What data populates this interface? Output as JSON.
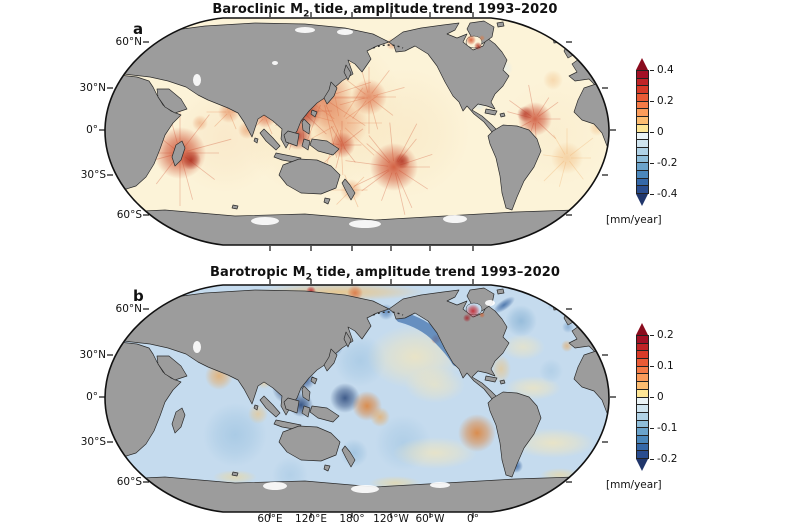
{
  "figure": {
    "panels": [
      {
        "letter": "a",
        "title_prefix": "Baroclinic M",
        "title_sub": "2",
        "title_suffix": " tide, amplitude trend 1993–2020",
        "lat_labels": [
          "60°N",
          "30°N",
          "0°",
          "30°S",
          "60°S"
        ],
        "colorbar": {
          "tick_labels": [
            "0.4",
            "0.2",
            "0",
            "-0.2",
            "-0.4"
          ],
          "unit": "[mm/year]"
        }
      },
      {
        "letter": "b",
        "title_prefix": "Barotropic M",
        "title_sub": "2",
        "title_suffix": " tide, amplitude trend 1993–2020",
        "lat_labels": [
          "60°N",
          "30°N",
          "0°",
          "30°S",
          "60°S"
        ],
        "colorbar": {
          "tick_labels": [
            "0.2",
            "0.1",
            "0",
            "-0.1",
            "-0.2"
          ],
          "unit": "[mm/year]"
        }
      }
    ],
    "lon_labels": [
      "60°E",
      "120°E",
      "180°",
      "120°W",
      "60°W",
      "0°"
    ],
    "palette": {
      "land": "#9c9c9c",
      "coastline": "#2b2b2b",
      "map_outline": "#111111",
      "ocean_a": "#fcf3d8",
      "ocean_b": "#c5dbee",
      "colorbar_colors": [
        "#a31126",
        "#c02427",
        "#d83a28",
        "#ea5b36",
        "#f57b47",
        "#fb9c5b",
        "#fdbd71",
        "#fee696",
        "#eaf3f6",
        "#cfe4ef",
        "#b0d2e6",
        "#8fbeda",
        "#6ba3cb",
        "#4b87bb",
        "#3568a8",
        "#2a4d8f"
      ],
      "colorbar_arrow_top": "#8a0c1e",
      "colorbar_arrow_bottom": "#20366b"
    },
    "chart_data": [
      {
        "type": "heatmap",
        "title": "Baroclinic M2 tide, amplitude trend 1993–2020",
        "projection": "Robinson world map, Pacific-centered",
        "colorbar": {
          "min": -0.4,
          "max": 0.4,
          "step": 0.05,
          "labeled_ticks": [
            0.4,
            0.2,
            0,
            -0.2,
            -0.4
          ],
          "unit": "mm/year"
        },
        "lat_ticks": [
          "60°N",
          "30°N",
          "0°",
          "30°S",
          "60°S"
        ],
        "lon_ticks": [
          "60°E",
          "120°E",
          "180°",
          "120°W",
          "60°W",
          "0°"
        ],
        "notable_features": [
          "strong positive (red) radiating beams near Madagascar/Mascarene ridge",
          "very strong positive signal South China Sea / Philippines / Indonesian seas",
          "radiating positive beams at Hawaii and French Polynesia",
          "positive beams near Caribbean/Amazon shelf",
          "mostly pale positive (cream/orange) ocean background",
          "gray continents"
        ]
      },
      {
        "type": "heatmap",
        "title": "Barotropic M2 tide, amplitude trend 1993–2020",
        "projection": "Robinson world map, Pacific-centered",
        "colorbar": {
          "min": -0.2,
          "max": 0.2,
          "step": 0.025,
          "labeled_ticks": [
            0.2,
            0.1,
            0,
            -0.1,
            -0.2
          ],
          "unit": "mm/year"
        },
        "lat_ticks": [
          "60°N",
          "30°N",
          "0°",
          "30°S",
          "60°S"
        ],
        "lon_ticks": [
          "60°E",
          "120°E",
          "180°",
          "120°W",
          "60°W",
          "0°"
        ],
        "notable_features": [
          "broad weak negative (light blue) ocean background",
          "strong negative (navy) Indonesian seas and Coral Sea",
          "dark blue band along Gulf of Alaska coast",
          "strong positive (red) Hudson Bay",
          "orange patches off Chile, Coral Sea, Arabian Sea and Arctic coast",
          "pale yellow positive bands in Atlantic and tropical Pacific"
        ]
      }
    ]
  }
}
